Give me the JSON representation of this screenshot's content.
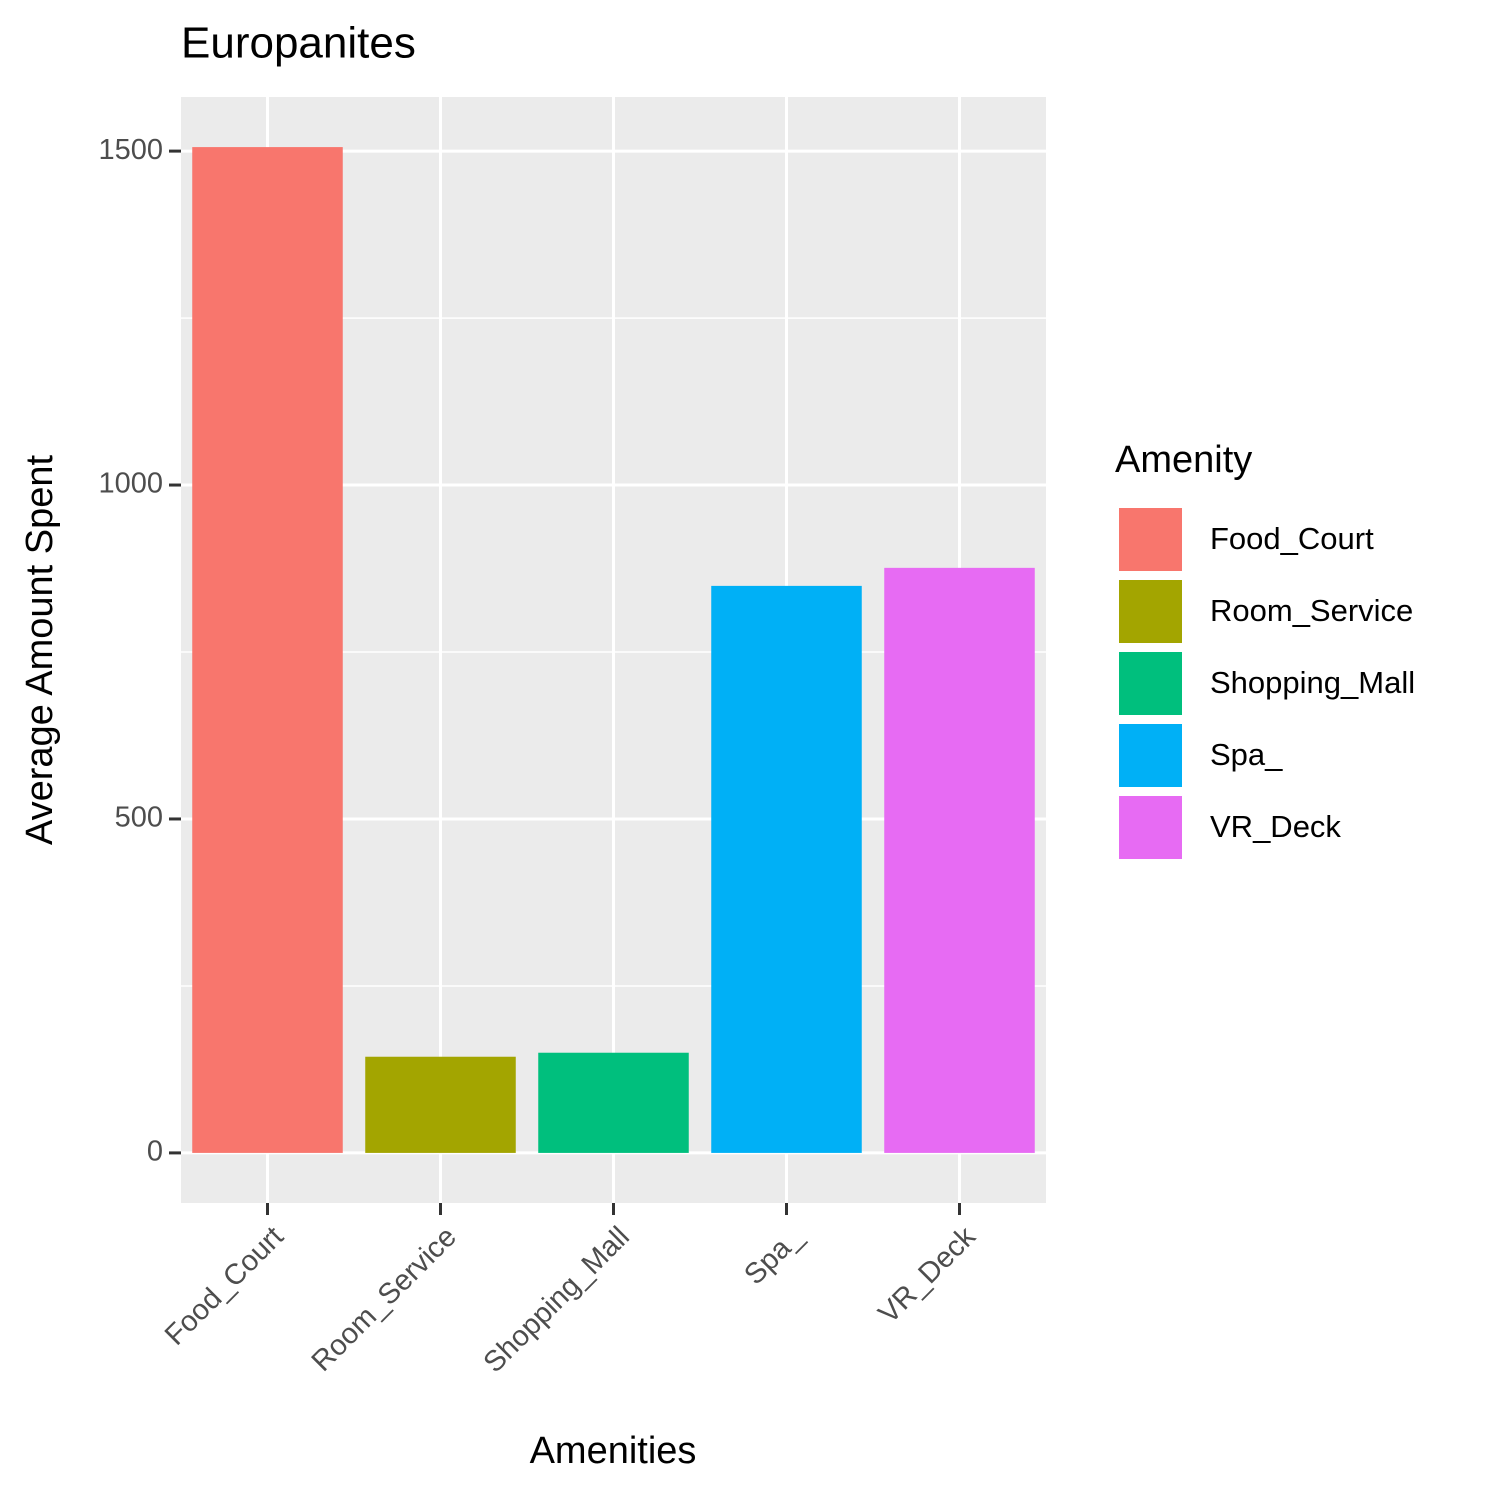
{
  "chart_data": {
    "type": "bar",
    "title": "Europanites",
    "x_label": "Amenities",
    "y_label": "Average Amount Spent",
    "categories": [
      "Food_Court",
      "Room_Service",
      "Shopping_Mall",
      "Spa_",
      "VR_Deck"
    ],
    "values": [
      1506,
      144,
      150,
      849,
      876
    ],
    "colors": [
      "#f8766d",
      "#a3a500",
      "#00bf7d",
      "#00b0f6",
      "#e76bf3"
    ],
    "legend_title": "Amenity",
    "legend_position": "right",
    "ylim": [
      -75,
      1581
    ],
    "yticks": [
      0,
      500,
      1000,
      1500
    ],
    "grid": true
  }
}
